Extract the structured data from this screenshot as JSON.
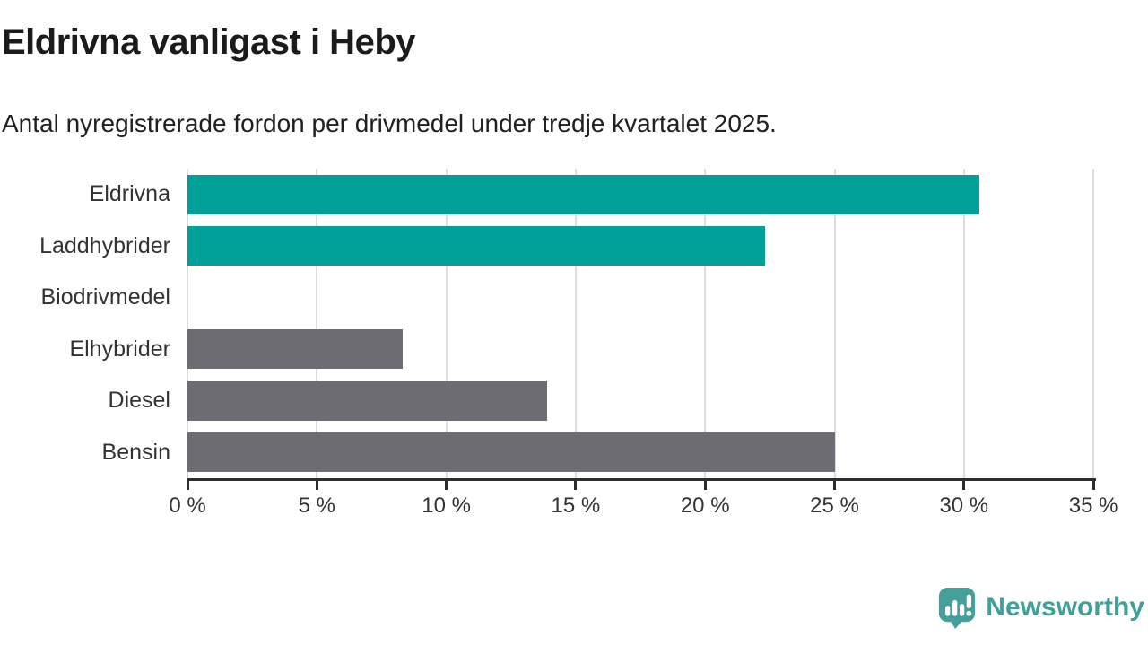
{
  "header": {
    "title": "Eldrivna vanligast i Heby",
    "subtitle": "Antal nyregistrerade fordon per drivmedel under tredje kvartalet 2025."
  },
  "chart_data": {
    "type": "bar",
    "orientation": "horizontal",
    "title": "Eldrivna vanligast i Heby",
    "subtitle": "Antal nyregistrerade fordon per drivmedel under tredje kvartalet 2025.",
    "categories": [
      "Eldrivna",
      "Laddhybrider",
      "Biodrivmedel",
      "Elhybrider",
      "Diesel",
      "Bensin"
    ],
    "values": [
      30.6,
      22.3,
      0,
      8.3,
      13.9,
      25.0
    ],
    "unit": "%",
    "bar_colors": [
      "#00a099",
      "#00a099",
      "#6d6c72",
      "#6d6c72",
      "#6d6c72",
      "#6d6c72"
    ],
    "highlight_color": "#00a099",
    "default_color": "#6d6c72",
    "xlabel": "",
    "ylabel": "",
    "xlim": [
      0,
      35.2
    ],
    "x_ticks": [
      0,
      5,
      10,
      15,
      20,
      25,
      30,
      35
    ],
    "x_tick_labels": [
      "0 %",
      "5 %",
      "10 %",
      "15 %",
      "20 %",
      "25 %",
      "30 %",
      "35 %"
    ],
    "grid": "vertical-only",
    "legend": "none"
  },
  "footer": {
    "brand": "Newsworthy",
    "brand_color": "#3f9f99",
    "logo_icon": "chart-speech-bubble-icon"
  },
  "colors": {
    "background": "#ffffff",
    "title_text": "#1b1b1b",
    "subtitle_text": "#202020",
    "axis_text": "#333333",
    "axis_line": "#2d2d2d",
    "gridline": "#dedede"
  }
}
